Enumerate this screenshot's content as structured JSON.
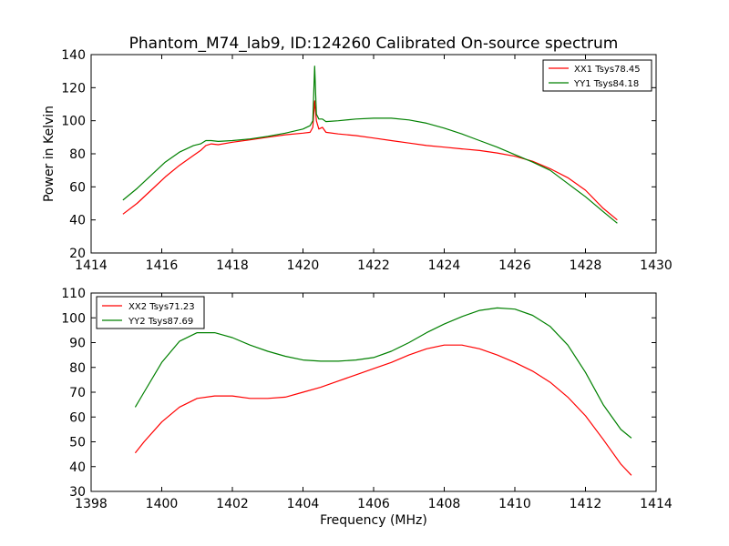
{
  "title": "Phantom_M74_lab9, ID:124260 Calibrated On-source spectrum",
  "chart_data": [
    {
      "type": "line",
      "panel": "top",
      "title": "Phantom_M74_lab9, ID:124260 Calibrated On-source spectrum",
      "xlabel": "",
      "ylabel": "Power in Kelvin",
      "xlim": [
        1414,
        1430
      ],
      "ylim": [
        20,
        140
      ],
      "xticks": [
        1414,
        1416,
        1418,
        1420,
        1422,
        1424,
        1426,
        1428,
        1430
      ],
      "yticks": [
        20,
        40,
        60,
        80,
        100,
        120,
        140
      ],
      "legend_position": "top-right",
      "series": [
        {
          "name": "XX1 Tsys78.45",
          "color": "#ff0000",
          "points": [
            [
              1414.9,
              43.5
            ],
            [
              1415.3,
              50
            ],
            [
              1415.7,
              58
            ],
            [
              1416.1,
              66
            ],
            [
              1416.5,
              73
            ],
            [
              1416.9,
              79
            ],
            [
              1417.1,
              82
            ],
            [
              1417.25,
              85
            ],
            [
              1417.4,
              86
            ],
            [
              1417.6,
              85.5
            ],
            [
              1418.0,
              87
            ],
            [
              1418.5,
              88.5
            ],
            [
              1419.0,
              90
            ],
            [
              1419.5,
              91.5
            ],
            [
              1420.0,
              92.5
            ],
            [
              1420.2,
              93
            ],
            [
              1420.28,
              96
            ],
            [
              1420.33,
              112
            ],
            [
              1420.38,
              100
            ],
            [
              1420.45,
              95
            ],
            [
              1420.55,
              96
            ],
            [
              1420.65,
              93
            ],
            [
              1421.0,
              92
            ],
            [
              1421.5,
              91
            ],
            [
              1422.0,
              89.5
            ],
            [
              1422.5,
              88
            ],
            [
              1423.0,
              86.5
            ],
            [
              1423.5,
              85
            ],
            [
              1424.0,
              84
            ],
            [
              1424.5,
              83
            ],
            [
              1425.0,
              82
            ],
            [
              1425.5,
              80.5
            ],
            [
              1426.0,
              78.5
            ],
            [
              1426.5,
              75.5
            ],
            [
              1427.0,
              71
            ],
            [
              1427.5,
              65.5
            ],
            [
              1428.0,
              58
            ],
            [
              1428.5,
              47
            ],
            [
              1428.9,
              40
            ]
          ]
        },
        {
          "name": "YY1 Tsys84.18",
          "color": "#008000",
          "points": [
            [
              1414.9,
              52
            ],
            [
              1415.3,
              59
            ],
            [
              1415.7,
              67
            ],
            [
              1416.1,
              75
            ],
            [
              1416.5,
              81
            ],
            [
              1416.9,
              85
            ],
            [
              1417.1,
              86
            ],
            [
              1417.25,
              88
            ],
            [
              1417.4,
              88
            ],
            [
              1417.6,
              87.5
            ],
            [
              1418.0,
              88
            ],
            [
              1418.5,
              89
            ],
            [
              1419.0,
              90.5
            ],
            [
              1419.5,
              92.5
            ],
            [
              1420.0,
              95
            ],
            [
              1420.2,
              97
            ],
            [
              1420.28,
              100
            ],
            [
              1420.33,
              133
            ],
            [
              1420.38,
              104
            ],
            [
              1420.45,
              101
            ],
            [
              1420.55,
              101
            ],
            [
              1420.65,
              99.5
            ],
            [
              1421.0,
              100
            ],
            [
              1421.5,
              101
            ],
            [
              1422.0,
              101.5
            ],
            [
              1422.5,
              101.5
            ],
            [
              1423.0,
              100.5
            ],
            [
              1423.5,
              98.5
            ],
            [
              1424.0,
              95.5
            ],
            [
              1424.5,
              92
            ],
            [
              1425.0,
              88
            ],
            [
              1425.5,
              84
            ],
            [
              1426.0,
              79.5
            ],
            [
              1426.5,
              75
            ],
            [
              1427.0,
              70
            ],
            [
              1427.5,
              62
            ],
            [
              1428.0,
              54
            ],
            [
              1428.5,
              45
            ],
            [
              1428.9,
              38
            ]
          ]
        }
      ]
    },
    {
      "type": "line",
      "panel": "bottom",
      "title": "",
      "xlabel": "Frequency (MHz)",
      "ylabel": "",
      "xlim": [
        1398,
        1414
      ],
      "ylim": [
        30,
        110
      ],
      "xticks": [
        1398,
        1400,
        1402,
        1404,
        1406,
        1408,
        1410,
        1412,
        1414
      ],
      "yticks": [
        30,
        40,
        50,
        60,
        70,
        80,
        90,
        100,
        110
      ],
      "legend_position": "top-left",
      "series": [
        {
          "name": "XX2 Tsys71.23",
          "color": "#ff0000",
          "points": [
            [
              1399.25,
              45.5
            ],
            [
              1399.5,
              50
            ],
            [
              1400.0,
              58
            ],
            [
              1400.5,
              64
            ],
            [
              1401.0,
              67.5
            ],
            [
              1401.5,
              68.5
            ],
            [
              1402.0,
              68.5
            ],
            [
              1402.5,
              67.5
            ],
            [
              1403.0,
              67.5
            ],
            [
              1403.5,
              68
            ],
            [
              1404.0,
              70
            ],
            [
              1404.5,
              72
            ],
            [
              1405.0,
              74.5
            ],
            [
              1405.5,
              77
            ],
            [
              1406.0,
              79.5
            ],
            [
              1406.5,
              82
            ],
            [
              1407.0,
              85
            ],
            [
              1407.5,
              87.5
            ],
            [
              1408.0,
              89
            ],
            [
              1408.5,
              89
            ],
            [
              1409.0,
              87.5
            ],
            [
              1409.5,
              85
            ],
            [
              1410.0,
              82
            ],
            [
              1410.5,
              78.5
            ],
            [
              1411.0,
              74
            ],
            [
              1411.5,
              68
            ],
            [
              1412.0,
              60.5
            ],
            [
              1412.5,
              51
            ],
            [
              1413.0,
              41
            ],
            [
              1413.3,
              36.5
            ]
          ]
        },
        {
          "name": "YY2 Tsys87.69",
          "color": "#008000",
          "points": [
            [
              1399.25,
              64
            ],
            [
              1399.5,
              70
            ],
            [
              1400.0,
              82
            ],
            [
              1400.5,
              90.5
            ],
            [
              1401.0,
              94
            ],
            [
              1401.5,
              94
            ],
            [
              1402.0,
              92
            ],
            [
              1402.5,
              89
            ],
            [
              1403.0,
              86.5
            ],
            [
              1403.5,
              84.5
            ],
            [
              1404.0,
              83
            ],
            [
              1404.5,
              82.5
            ],
            [
              1405.0,
              82.5
            ],
            [
              1405.5,
              83
            ],
            [
              1406.0,
              84
            ],
            [
              1406.5,
              86.5
            ],
            [
              1407.0,
              90
            ],
            [
              1407.5,
              94
            ],
            [
              1408.0,
              97.5
            ],
            [
              1408.5,
              100.5
            ],
            [
              1409.0,
              103
            ],
            [
              1409.5,
              104
            ],
            [
              1410.0,
              103.5
            ],
            [
              1410.5,
              101
            ],
            [
              1411.0,
              96.5
            ],
            [
              1411.5,
              89
            ],
            [
              1412.0,
              78
            ],
            [
              1412.5,
              65
            ],
            [
              1413.0,
              55
            ],
            [
              1413.3,
              51.5
            ]
          ]
        }
      ]
    }
  ]
}
